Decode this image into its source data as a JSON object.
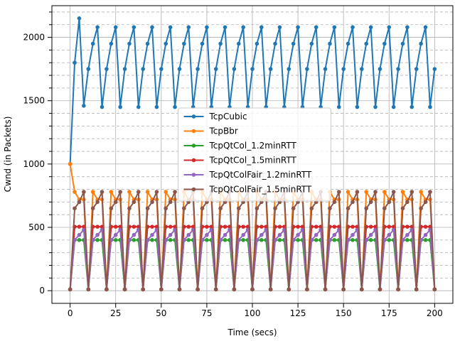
{
  "chart_data": {
    "type": "line",
    "x_label": "Time (secs)",
    "y_label": "Cwnd (in Packets)",
    "xlim": [
      -10,
      210
    ],
    "ylim": [
      -100,
      2250
    ],
    "xticks": [
      0,
      25,
      50,
      75,
      100,
      125,
      150,
      175,
      200
    ],
    "yticks": [
      0,
      500,
      1000,
      1500,
      2000
    ],
    "yminorticks": [
      100,
      200,
      300,
      400,
      600,
      700,
      800,
      900,
      1100,
      1200,
      1300,
      1400,
      1600,
      1700,
      1800,
      1900,
      2100,
      2200
    ],
    "grid": true,
    "legend": "center",
    "x": [
      0,
      2.5,
      5,
      7.5,
      10,
      12.5,
      15,
      17.5,
      20,
      22.5,
      25,
      27.5,
      30,
      32.5,
      35,
      37.5,
      40,
      42.5,
      45,
      47.5,
      50,
      52.5,
      55,
      57.5,
      60,
      62.5,
      65,
      67.5,
      70,
      72.5,
      75,
      77.5,
      80,
      82.5,
      85,
      87.5,
      90,
      92.5,
      95,
      97.5,
      100,
      102.5,
      105,
      107.5,
      110,
      112.5,
      115,
      117.5,
      120,
      122.5,
      125,
      127.5,
      130,
      132.5,
      135,
      137.5,
      140,
      142.5,
      145,
      147.5,
      150,
      152.5,
      155,
      157.5,
      160,
      162.5,
      165,
      167.5,
      170,
      172.5,
      175,
      177.5,
      180,
      182.5,
      185,
      187.5,
      190,
      192.5,
      195,
      197.5,
      200
    ],
    "series": [
      {
        "name": "TcpCubic",
        "color": "#1f77b4",
        "values": [
          1000,
          1800,
          2150,
          1460,
          1750,
          1950,
          2080,
          1450,
          1750,
          1950,
          2080,
          1450,
          1750,
          1950,
          2080,
          1450,
          1750,
          1950,
          2080,
          1450,
          1750,
          1950,
          2080,
          1450,
          1750,
          1950,
          2080,
          1450,
          1750,
          1950,
          2080,
          1450,
          1750,
          1950,
          2080,
          1450,
          1750,
          1950,
          2080,
          1450,
          1750,
          1950,
          2080,
          1450,
          1750,
          1950,
          2080,
          1450,
          1750,
          1950,
          2080,
          1450,
          1750,
          1950,
          2080,
          1450,
          1750,
          1950,
          2080,
          1450,
          1750,
          1950,
          2080,
          1450,
          1750,
          1950,
          2080,
          1450,
          1750,
          1950,
          2080,
          1450,
          1750,
          1950,
          2080,
          1450,
          1750,
          1950,
          2080,
          1450,
          1750
        ]
      },
      {
        "name": "TcpBbr",
        "color": "#ff7f0e",
        "values": [
          1000,
          780,
          720,
          720,
          10,
          780,
          720,
          720,
          10,
          780,
          720,
          720,
          10,
          780,
          720,
          720,
          10,
          780,
          720,
          720,
          10,
          780,
          720,
          720,
          10,
          780,
          720,
          720,
          10,
          780,
          720,
          720,
          10,
          780,
          720,
          720,
          10,
          780,
          720,
          720,
          10,
          780,
          720,
          720,
          10,
          780,
          720,
          720,
          10,
          780,
          720,
          720,
          10,
          780,
          720,
          720,
          10,
          780,
          720,
          720,
          10,
          780,
          720,
          720,
          10,
          780,
          720,
          720,
          10,
          780,
          720,
          720,
          10,
          780,
          720,
          720,
          10,
          780,
          720,
          720,
          10
        ]
      },
      {
        "name": "TcpQtCol_1.2minRTT",
        "color": "#2ca02c",
        "values": [
          10,
          400,
          400,
          400,
          10,
          400,
          400,
          400,
          10,
          400,
          400,
          400,
          10,
          400,
          400,
          400,
          10,
          400,
          400,
          400,
          10,
          400,
          400,
          400,
          10,
          400,
          400,
          400,
          10,
          400,
          400,
          400,
          10,
          400,
          400,
          400,
          10,
          400,
          400,
          400,
          10,
          400,
          400,
          400,
          10,
          400,
          400,
          400,
          10,
          400,
          400,
          400,
          10,
          400,
          400,
          400,
          10,
          400,
          400,
          400,
          10,
          400,
          400,
          400,
          10,
          400,
          400,
          400,
          10,
          400,
          400,
          400,
          10,
          400,
          400,
          400,
          10,
          400,
          400,
          400,
          10
        ]
      },
      {
        "name": "TcpQtCol_1.5minRTT",
        "color": "#d62728",
        "values": [
          10,
          505,
          505,
          505,
          10,
          505,
          505,
          505,
          10,
          505,
          505,
          505,
          10,
          505,
          505,
          505,
          10,
          505,
          505,
          505,
          10,
          505,
          505,
          505,
          10,
          505,
          505,
          505,
          10,
          505,
          505,
          505,
          10,
          505,
          505,
          505,
          10,
          505,
          505,
          505,
          10,
          505,
          505,
          505,
          10,
          505,
          505,
          505,
          10,
          505,
          505,
          505,
          10,
          505,
          505,
          505,
          10,
          505,
          505,
          505,
          10,
          505,
          505,
          505,
          10,
          505,
          505,
          505,
          10,
          505,
          505,
          505,
          10,
          505,
          505,
          505,
          10,
          505,
          505,
          505,
          10
        ]
      },
      {
        "name": "TcpQtColFair_1.2minRTT",
        "color": "#9467bd",
        "values": [
          10,
          400,
          440,
          480,
          10,
          400,
          440,
          480,
          10,
          400,
          440,
          480,
          10,
          400,
          440,
          480,
          10,
          400,
          440,
          480,
          10,
          400,
          440,
          480,
          10,
          400,
          440,
          480,
          10,
          400,
          440,
          480,
          10,
          400,
          440,
          480,
          10,
          400,
          440,
          480,
          10,
          400,
          440,
          480,
          10,
          400,
          440,
          480,
          10,
          400,
          440,
          480,
          10,
          400,
          440,
          480,
          10,
          400,
          440,
          480,
          10,
          400,
          440,
          480,
          10,
          400,
          440,
          480,
          10,
          400,
          440,
          480,
          10,
          400,
          440,
          480,
          10,
          400,
          440,
          480,
          10
        ]
      },
      {
        "name": "TcpQtColFair_1.5minRTT",
        "color": "#8c564b",
        "values": [
          10,
          650,
          700,
          780,
          10,
          650,
          700,
          780,
          10,
          650,
          700,
          780,
          10,
          650,
          700,
          780,
          10,
          650,
          700,
          780,
          10,
          650,
          700,
          780,
          10,
          650,
          700,
          780,
          10,
          650,
          700,
          780,
          10,
          650,
          700,
          780,
          10,
          650,
          700,
          780,
          10,
          650,
          700,
          780,
          10,
          650,
          700,
          780,
          10,
          650,
          700,
          780,
          10,
          650,
          700,
          780,
          10,
          650,
          700,
          780,
          10,
          650,
          700,
          780,
          10,
          650,
          700,
          780,
          10,
          650,
          700,
          780,
          10,
          650,
          700,
          780,
          10,
          650,
          700,
          780,
          10
        ]
      }
    ]
  }
}
